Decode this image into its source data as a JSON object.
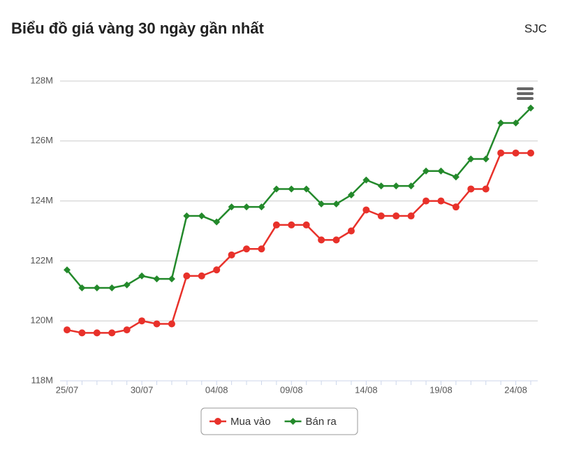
{
  "chart_data": {
    "type": "line",
    "title": "Biểu đồ giá vàng 30 ngày gần nhất",
    "subtitle": "SJC",
    "categories": [
      "25/07",
      null,
      null,
      null,
      null,
      "30/07",
      null,
      null,
      null,
      null,
      "04/08",
      null,
      null,
      null,
      null,
      "09/08",
      null,
      null,
      null,
      null,
      "14/08",
      null,
      null,
      null,
      null,
      "19/08",
      null,
      null,
      null,
      null,
      "24/08",
      null
    ],
    "series": [
      {
        "name": "Mua vào",
        "color": "#e8312a",
        "marker": "circle",
        "values": [
          119.7,
          119.6,
          119.6,
          119.6,
          119.7,
          120.0,
          119.9,
          119.9,
          121.5,
          121.5,
          121.7,
          122.2,
          122.4,
          122.4,
          123.2,
          123.2,
          123.2,
          122.7,
          122.7,
          123.0,
          123.7,
          123.5,
          123.5,
          123.5,
          124.0,
          124.0,
          123.8,
          124.4,
          124.4,
          125.6,
          125.6,
          125.6
        ]
      },
      {
        "name": "Bán ra",
        "color": "#23892b",
        "marker": "diamond",
        "values": [
          121.7,
          121.1,
          121.1,
          121.1,
          121.2,
          121.5,
          121.4,
          121.4,
          123.5,
          123.5,
          123.3,
          123.8,
          123.8,
          123.8,
          124.4,
          124.4,
          124.4,
          123.9,
          123.9,
          124.2,
          124.7,
          124.5,
          124.5,
          124.5,
          125.0,
          125.0,
          124.8,
          125.4,
          125.4,
          126.6,
          126.6,
          127.1
        ]
      }
    ],
    "ylim": [
      118,
      128
    ],
    "yticks": [
      {
        "value": 118,
        "label": "118M"
      },
      {
        "value": 120,
        "label": "120M"
      },
      {
        "value": 122,
        "label": "122M"
      },
      {
        "value": 124,
        "label": "124M"
      },
      {
        "value": 126,
        "label": "126M"
      },
      {
        "value": 128,
        "label": "128M"
      }
    ],
    "grid": true,
    "legend": "bottom"
  }
}
